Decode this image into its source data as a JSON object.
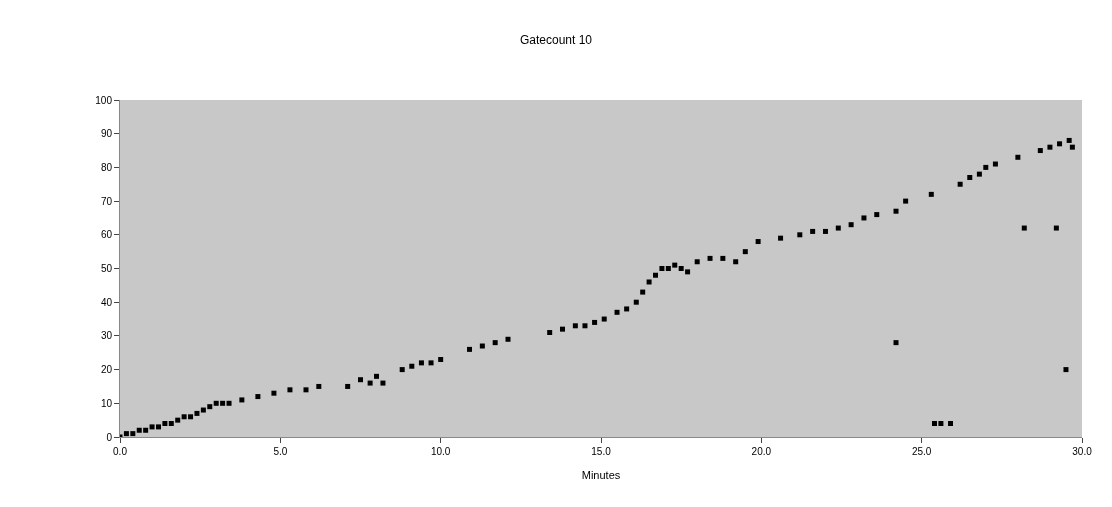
{
  "chart_data": {
    "type": "scatter",
    "title": "Gatecount 10",
    "xlabel": "Minutes",
    "x": [
      0.0,
      0.2,
      0.4,
      0.6,
      0.8,
      1.0,
      1.2,
      1.4,
      1.6,
      1.8,
      2.0,
      2.2,
      2.4,
      2.6,
      2.8,
      3.0,
      3.2,
      3.4,
      3.8,
      4.3,
      4.8,
      5.3,
      5.8,
      6.2,
      7.1,
      7.5,
      7.8,
      8.0,
      8.2,
      8.8,
      9.1,
      9.4,
      9.7,
      10.0,
      10.9,
      11.3,
      11.7,
      12.1,
      13.4,
      13.8,
      14.2,
      14.5,
      14.8,
      15.1,
      15.5,
      15.8,
      16.1,
      16.3,
      16.5,
      16.7,
      16.9,
      17.1,
      17.3,
      17.5,
      17.7,
      18.0,
      18.4,
      18.8,
      19.2,
      19.5,
      19.9,
      20.6,
      21.2,
      21.6,
      22.0,
      22.4,
      22.8,
      23.2,
      23.6,
      24.2,
      24.5,
      25.3,
      26.2,
      26.5,
      26.8,
      27.0,
      27.3,
      28.0,
      28.7,
      29.0,
      29.3,
      29.6,
      29.7,
      24.2,
      25.4,
      25.6,
      25.9,
      28.2,
      29.2,
      29.5
    ],
    "values": [
      0,
      1,
      1,
      2,
      2,
      3,
      3,
      4,
      4,
      5,
      6,
      6,
      7,
      8,
      9,
      10,
      10,
      10,
      11,
      12,
      13,
      14,
      14,
      15,
      15,
      17,
      16,
      18,
      16,
      20,
      21,
      22,
      22,
      23,
      26,
      27,
      28,
      29,
      31,
      32,
      33,
      33,
      34,
      35,
      37,
      38,
      40,
      43,
      46,
      48,
      50,
      50,
      51,
      50,
      49,
      52,
      53,
      53,
      52,
      55,
      58,
      59,
      60,
      61,
      61,
      62,
      63,
      65,
      66,
      67,
      70,
      72,
      75,
      77,
      78,
      80,
      81,
      83,
      85,
      86,
      87,
      88,
      86,
      28,
      4,
      4,
      4,
      62,
      62,
      20
    ],
    "color": "#000000",
    "marker": "square",
    "xlim": [
      0,
      30
    ],
    "xticks": [
      {
        "value": 0,
        "label": "0.0"
      },
      {
        "value": 5,
        "label": "5.0"
      },
      {
        "value": 10,
        "label": "10.0"
      },
      {
        "value": 15,
        "label": "15.0"
      },
      {
        "value": 20,
        "label": "20.0"
      },
      {
        "value": 25,
        "label": "25.0"
      },
      {
        "value": 30,
        "label": "30.0"
      }
    ],
    "ylim": [
      0,
      100
    ],
    "yticks": [
      0,
      10,
      20,
      30,
      40,
      50,
      60,
      70,
      80,
      90,
      100
    ],
    "grid": false
  }
}
